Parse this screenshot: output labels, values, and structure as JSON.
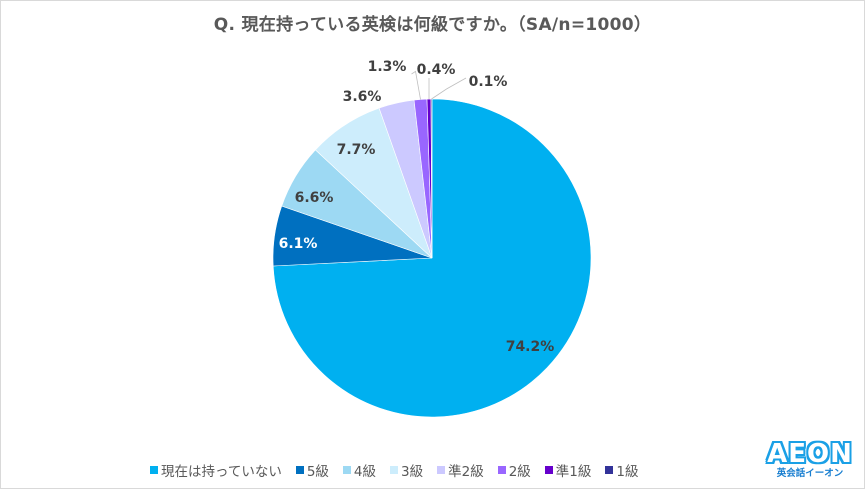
{
  "title": "Q. 現在持っている英検は何級ですか。（SA/n=1000）",
  "chart_data": {
    "type": "pie",
    "title": "Q. 現在持っている英検は何級ですか。（SA/n=1000）",
    "n": 1000,
    "categories": [
      "現在は持っていない",
      "5級",
      "4級",
      "3級",
      "準2級",
      "2級",
      "準1級",
      "1級"
    ],
    "values": [
      74.2,
      6.1,
      6.6,
      7.7,
      3.6,
      1.3,
      0.4,
      0.1
    ],
    "labels": [
      "74.2%",
      "6.1%",
      "6.6%",
      "7.7%",
      "3.6%",
      "1.3%",
      "0.4%",
      "0.1%"
    ],
    "colors": [
      "#00b0f0",
      "#0070c0",
      "#9dd9f3",
      "#cdedfc",
      "#ccc9ff",
      "#9966ff",
      "#6600cc",
      "#333399"
    ],
    "start_angle": "12 o'clock, clockwise",
    "legend_position": "bottom"
  },
  "legend": [
    {
      "label": "現在は持っていない",
      "color": "#00b0f0"
    },
    {
      "label": "5級",
      "color": "#0070c0"
    },
    {
      "label": "4級",
      "color": "#9dd9f3"
    },
    {
      "label": "3級",
      "color": "#cdedfc"
    },
    {
      "label": "準2級",
      "color": "#ccc9ff"
    },
    {
      "label": "2級",
      "color": "#9966ff"
    },
    {
      "label": "準1級",
      "color": "#6600cc"
    },
    {
      "label": "1級",
      "color": "#333399"
    }
  ],
  "logo": {
    "main": "AEON",
    "sub": "英会話イーオン"
  }
}
